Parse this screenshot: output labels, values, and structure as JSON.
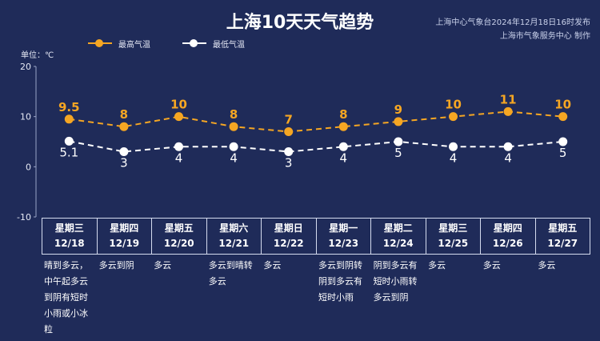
{
  "header": {
    "title": "上海10天天气趋势",
    "source_line1": "上海中心气象台2024年12月18日16时发布",
    "source_line2": "上海市气象服务中心 制作"
  },
  "colors": {
    "high": "#f5a623",
    "low": "#ffffff",
    "background": "#1f2b59",
    "grid": "#d5dbef"
  },
  "chart_data": {
    "type": "line",
    "title": "上海10天天气趋势",
    "unit_label": "单位：℃",
    "ylim": [
      -10,
      20
    ],
    "yticks": [
      20,
      10,
      0,
      -10
    ],
    "legend_position": "top-left",
    "categories": [
      "12/18",
      "12/19",
      "12/20",
      "12/21",
      "12/22",
      "12/23",
      "12/24",
      "12/25",
      "12/26",
      "12/27"
    ],
    "series": [
      {
        "name": "最高气温",
        "values": [
          9.5,
          8,
          10,
          8,
          7,
          8,
          9,
          10,
          11,
          10
        ]
      },
      {
        "name": "最低气温",
        "values": [
          5.1,
          3,
          4,
          4,
          3,
          4,
          5,
          4,
          4,
          5
        ]
      }
    ]
  },
  "days": [
    {
      "weekday": "星期三",
      "date": "12/18",
      "desc": "晴到多云，中午起多云到阴有短时小雨或小冰粒"
    },
    {
      "weekday": "星期四",
      "date": "12/19",
      "desc": "多云到阴"
    },
    {
      "weekday": "星期五",
      "date": "12/20",
      "desc": "多云"
    },
    {
      "weekday": "星期六",
      "date": "12/21",
      "desc": "多云到晴转多云"
    },
    {
      "weekday": "星期日",
      "date": "12/22",
      "desc": "多云"
    },
    {
      "weekday": "星期一",
      "date": "12/23",
      "desc": "多云到阴转阴到多云有短时小雨"
    },
    {
      "weekday": "星期二",
      "date": "12/24",
      "desc": "阴到多云有短时小雨转多云到阴"
    },
    {
      "weekday": "星期三",
      "date": "12/25",
      "desc": "多云"
    },
    {
      "weekday": "星期四",
      "date": "12/26",
      "desc": "多云"
    },
    {
      "weekday": "星期五",
      "date": "12/27",
      "desc": "多云"
    }
  ]
}
